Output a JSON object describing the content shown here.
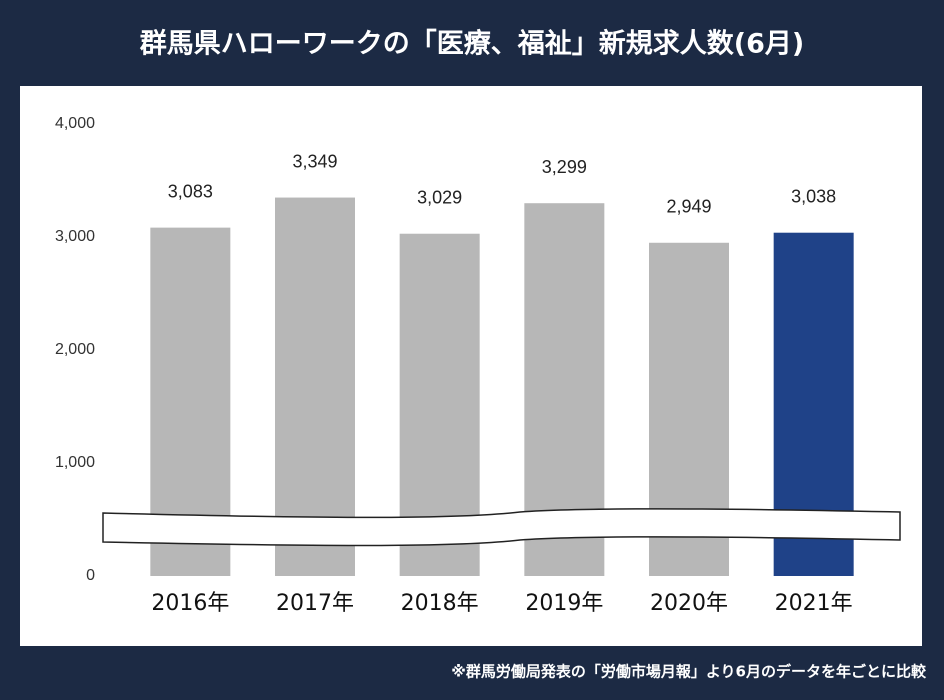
{
  "chart_data": {
    "type": "bar",
    "title": "群馬県ハローワークの「医療、福祉」新規求人数(6月)",
    "footnote": "※群馬労働局発表の「労働市場月報」より6月のデータを年ごとに比較",
    "categories": [
      "2016年",
      "2017年",
      "2018年",
      "2019年",
      "2020年",
      "2021年"
    ],
    "values": [
      3083,
      3349,
      3029,
      3299,
      2949,
      3038
    ],
    "value_labels": [
      "3,083",
      "3,349",
      "3,029",
      "3,299",
      "2,949",
      "3,038"
    ],
    "colors": [
      "#b7b7b7",
      "#b7b7b7",
      "#b7b7b7",
      "#b7b7b7",
      "#b7b7b7",
      "#1f4288"
    ],
    "ylim": [
      0,
      4000
    ],
    "yticks": [
      0,
      {
        "value": 1000,
        "label": "1,000"
      },
      {
        "value": 2000,
        "label": "2,000"
      },
      {
        "value": 3000,
        "label": "3,000"
      },
      {
        "value": 4000,
        "label": "4,000"
      }
    ],
    "grid": false
  }
}
